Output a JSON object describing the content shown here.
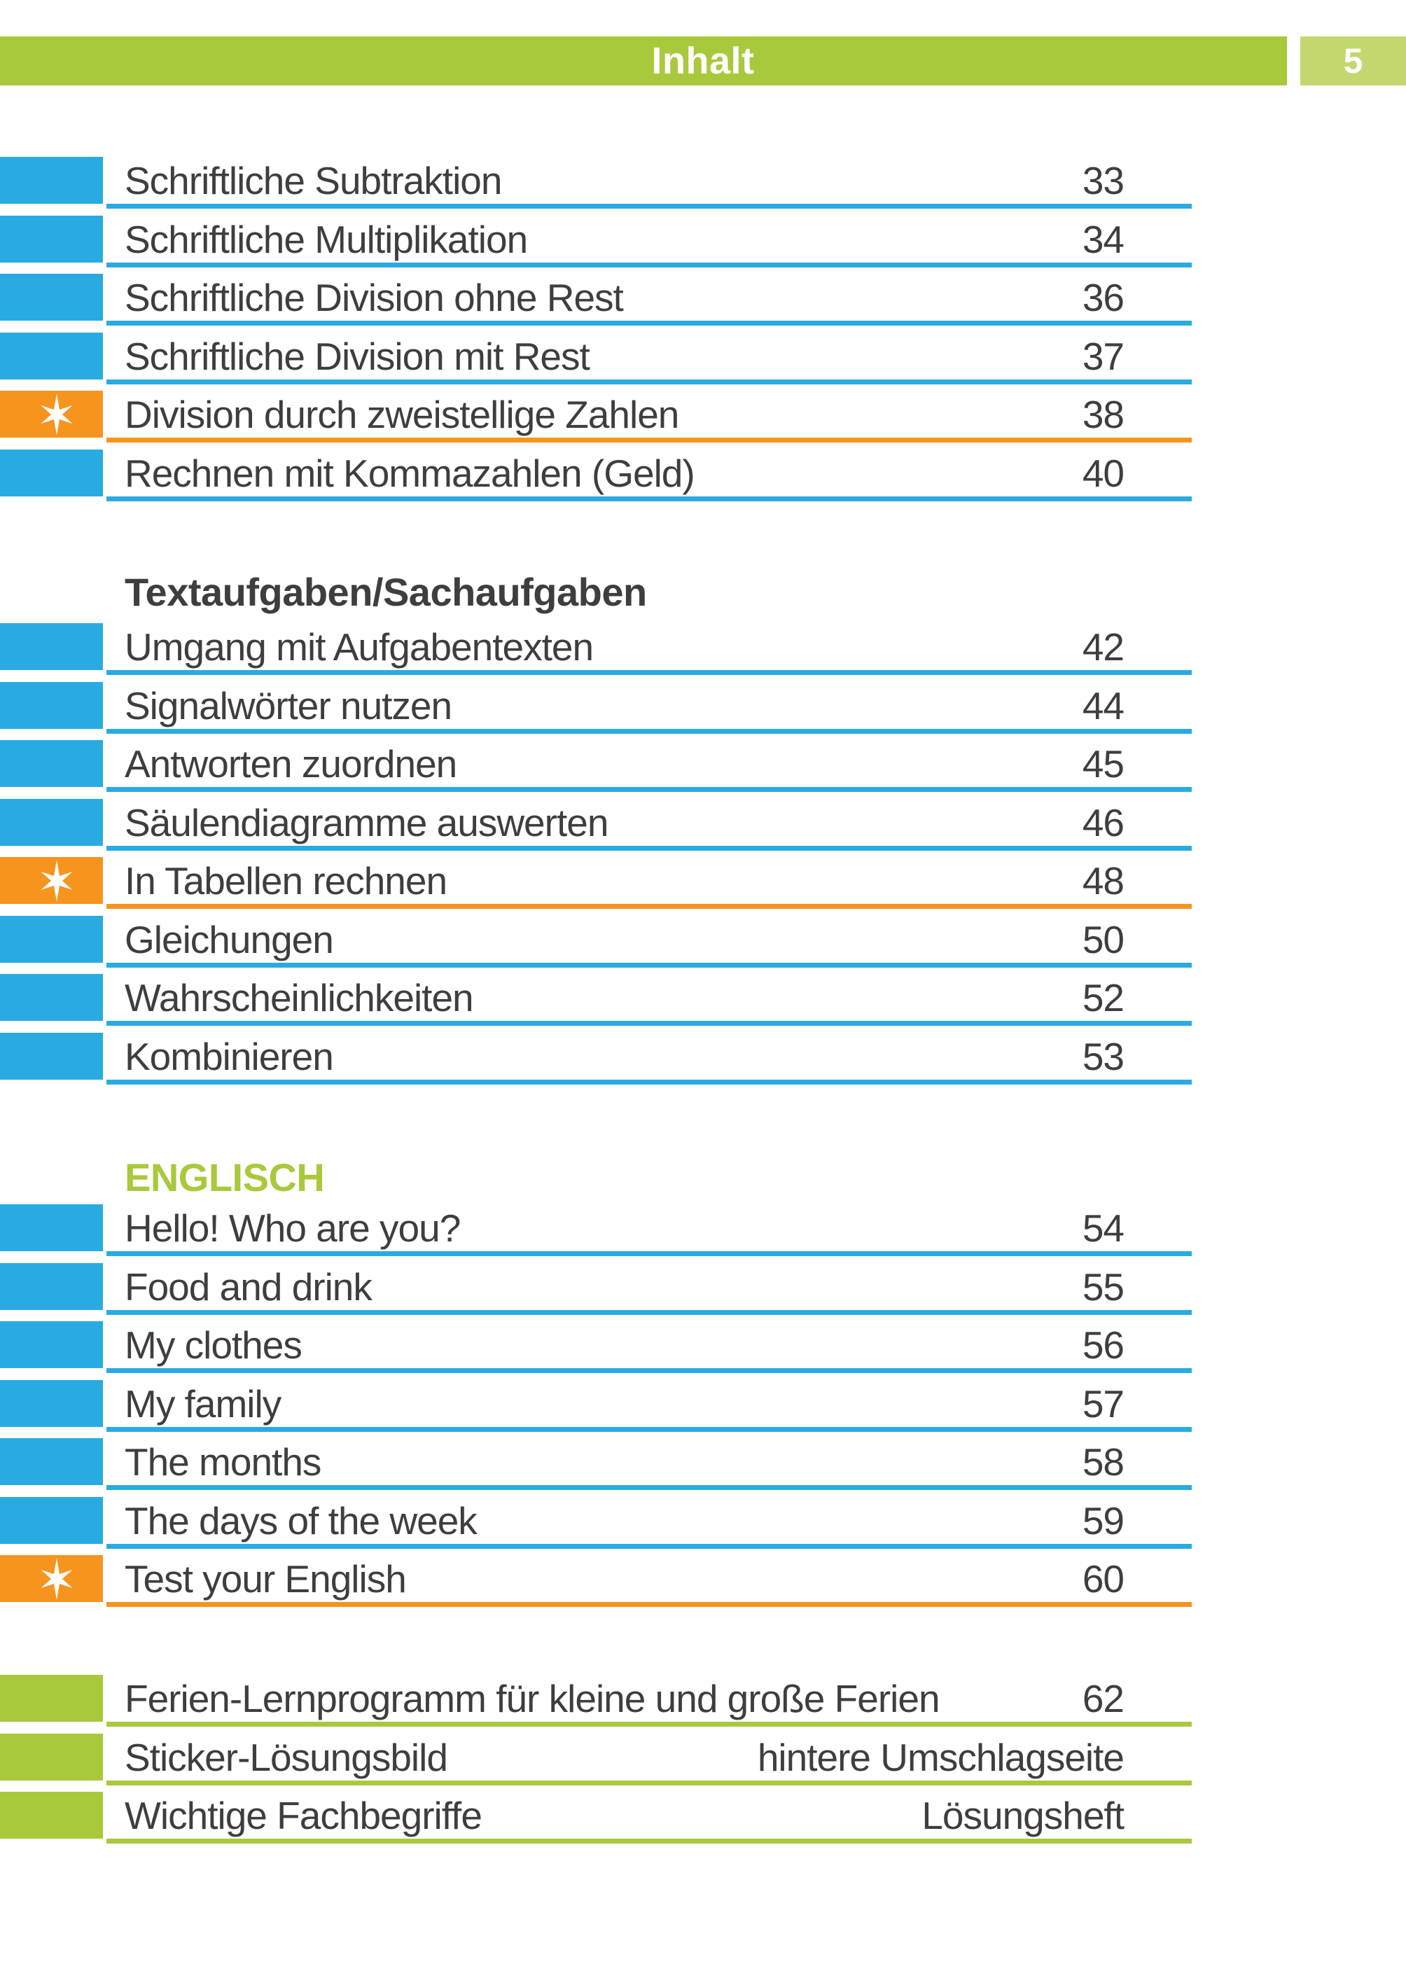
{
  "header": {
    "title": "Inhalt",
    "page_number": "5"
  },
  "colors": {
    "blue": "#29abe2",
    "orange": "#f7941e",
    "green": "#a9c93c",
    "green_light": "#c2d86e",
    "text_dark": "#3e3e3d",
    "white": "#ffffff"
  },
  "icons": {
    "star": "six-point-star-icon"
  },
  "entries": [
    {
      "type": "item",
      "color": "blue",
      "star": false,
      "label": "Schriftliche Subtraktion",
      "value": "33"
    },
    {
      "type": "item",
      "color": "blue",
      "star": false,
      "label": "Schriftliche Multiplikation",
      "value": "34"
    },
    {
      "type": "item",
      "color": "blue",
      "star": false,
      "label": "Schriftliche Division ohne Rest",
      "value": "36"
    },
    {
      "type": "item",
      "color": "blue",
      "star": false,
      "label": "Schriftliche Division mit Rest",
      "value": "37"
    },
    {
      "type": "item",
      "color": "orange",
      "star": true,
      "label": "Division durch zweistellige Zahlen",
      "value": "38"
    },
    {
      "type": "item",
      "color": "blue",
      "star": false,
      "label": "Rechnen mit Kommazahlen (Geld)",
      "value": "40"
    },
    {
      "type": "section",
      "style": "dark",
      "label": "Textaufgaben/Sachaufgaben"
    },
    {
      "type": "item",
      "color": "blue",
      "star": false,
      "label": "Umgang mit Aufgabentexten",
      "value": "42"
    },
    {
      "type": "item",
      "color": "blue",
      "star": false,
      "label": "Signalwörter nutzen",
      "value": "44"
    },
    {
      "type": "item",
      "color": "blue",
      "star": false,
      "label": "Antworten zuordnen",
      "value": "45"
    },
    {
      "type": "item",
      "color": "blue",
      "star": false,
      "label": "Säulendiagramme auswerten",
      "value": "46"
    },
    {
      "type": "item",
      "color": "orange",
      "star": true,
      "label": "In Tabellen rechnen",
      "value": "48"
    },
    {
      "type": "item",
      "color": "blue",
      "star": false,
      "label": "Gleichungen",
      "value": "50"
    },
    {
      "type": "item",
      "color": "blue",
      "star": false,
      "label": "Wahrscheinlichkeiten",
      "value": "52"
    },
    {
      "type": "item",
      "color": "blue",
      "star": false,
      "label": "Kombinieren",
      "value": "53"
    },
    {
      "type": "section",
      "style": "green",
      "label": "ENGLISCH"
    },
    {
      "type": "item",
      "color": "blue",
      "star": false,
      "label": "Hello! Who are you?",
      "value": "54"
    },
    {
      "type": "item",
      "color": "blue",
      "star": false,
      "label": "Food and drink",
      "value": "55"
    },
    {
      "type": "item",
      "color": "blue",
      "star": false,
      "label": "My clothes",
      "value": "56"
    },
    {
      "type": "item",
      "color": "blue",
      "star": false,
      "label": "My family",
      "value": "57"
    },
    {
      "type": "item",
      "color": "blue",
      "star": false,
      "label": "The months",
      "value": "58"
    },
    {
      "type": "item",
      "color": "blue",
      "star": false,
      "label": "The days of the week",
      "value": "59"
    },
    {
      "type": "item",
      "color": "orange",
      "star": true,
      "label": "Test your English",
      "value": "60"
    },
    {
      "type": "item",
      "color": "green",
      "star": false,
      "gap_before": true,
      "label": "Ferien-Lernprogramm für kleine und große Ferien",
      "value": "62"
    },
    {
      "type": "item",
      "color": "green",
      "star": false,
      "label": "Sticker-Lösungsbild",
      "value": "hintere Umschlagseite"
    },
    {
      "type": "item",
      "color": "green",
      "star": false,
      "label": "Wichtige Fachbegriffe",
      "value": "Lösungsheft"
    }
  ]
}
